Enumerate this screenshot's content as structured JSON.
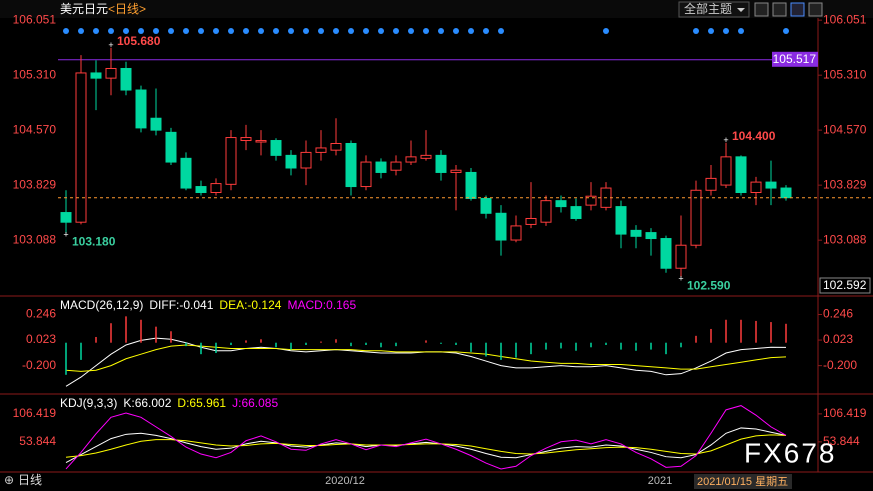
{
  "header": {
    "title": "美元日元",
    "period": "<日线>",
    "theme_button": "全部主题"
  },
  "chart_data": [
    {
      "type": "candlestick",
      "up_color": "#ff3c3c",
      "down_color": "#00d8a0",
      "open": [
        103.46,
        103.33,
        105.34,
        105.27,
        105.4,
        105.11,
        104.73,
        104.54,
        104.19,
        103.81,
        103.73,
        103.84,
        104.43,
        104.41,
        104.43,
        104.23,
        104.06,
        104.27,
        104.3,
        104.39,
        103.81,
        104.14,
        104.03,
        104.14,
        104.19,
        104.23,
        104.0,
        104.0,
        103.65,
        103.45,
        103.09,
        103.3,
        103.33,
        103.62,
        103.54,
        103.56,
        103.53,
        103.54,
        103.22,
        103.19,
        103.11,
        102.71,
        103.02,
        103.76,
        103.83,
        104.21,
        103.73,
        103.87,
        103.79
      ],
      "high": [
        103.76,
        105.58,
        105.51,
        105.68,
        105.49,
        105.17,
        105.13,
        104.6,
        104.27,
        103.89,
        103.92,
        104.57,
        104.64,
        104.57,
        104.46,
        104.3,
        104.43,
        104.57,
        104.73,
        104.43,
        104.23,
        104.19,
        104.23,
        104.43,
        104.57,
        104.3,
        104.1,
        104.06,
        103.69,
        103.56,
        103.42,
        103.87,
        103.69,
        103.69,
        103.65,
        103.87,
        103.87,
        103.62,
        103.29,
        103.25,
        103.15,
        103.42,
        103.89,
        104.1,
        104.4,
        104.23,
        103.94,
        104.16,
        103.83
      ],
      "low": [
        103.18,
        103.3,
        104.84,
        105.04,
        105.04,
        104.54,
        104.5,
        104.1,
        103.76,
        103.69,
        103.69,
        103.76,
        104.3,
        104.23,
        104.16,
        103.96,
        103.83,
        104.16,
        104.23,
        103.69,
        103.76,
        103.92,
        103.96,
        104.1,
        104.16,
        103.89,
        103.49,
        103.62,
        103.38,
        102.88,
        103.06,
        103.25,
        103.28,
        103.46,
        103.35,
        103.49,
        103.49,
        102.98,
        102.98,
        102.88,
        102.65,
        102.59,
        102.98,
        103.69,
        103.79,
        103.69,
        103.56,
        103.56,
        103.62
      ],
      "close": [
        103.33,
        105.34,
        105.27,
        105.4,
        105.11,
        104.6,
        104.57,
        104.14,
        103.79,
        103.73,
        103.85,
        104.47,
        104.47,
        104.43,
        104.23,
        104.06,
        104.27,
        104.33,
        104.39,
        103.81,
        104.14,
        104.0,
        104.14,
        104.21,
        104.23,
        104.0,
        104.03,
        103.65,
        103.45,
        103.09,
        103.28,
        103.38,
        103.62,
        103.54,
        103.38,
        103.68,
        103.79,
        103.17,
        103.14,
        103.11,
        102.71,
        103.02,
        103.76,
        103.92,
        104.21,
        103.73,
        103.87,
        103.79,
        103.66
      ],
      "ylim": [
        102.592,
        106.08
      ],
      "yticks": [
        103.088,
        103.829,
        {
          "value": 104.57,
          "label": "104.570"
        },
        {
          "value": 105.31,
          "label": "105.310"
        },
        106.051
      ],
      "annotations": [
        {
          "value": 105.68,
          "label": "105.680"
        },
        {
          "value": 103.18,
          "label": "103.180"
        },
        {
          "value": 104.4,
          "label": "104.400"
        },
        {
          "value": 102.59,
          "label": "102.590"
        }
      ],
      "reference_line": {
        "value": 105.517,
        "label": "105.517",
        "color": "#8a2be2"
      }
    },
    {
      "type": "macd",
      "title": "MACD(26,12,9)",
      "ylim": [
        -0.43,
        0.39
      ],
      "yticks": [
        0.246,
        0.023,
        {
          "value": -0.2,
          "label": "-0.200"
        }
      ],
      "series": [
        {
          "name": "DIFF:-0.041",
          "color": "#ffffff",
          "values": [
            -0.38,
            -0.3,
            -0.2,
            -0.1,
            -0.02,
            0.02,
            0.04,
            0.03,
            0.0,
            -0.04,
            -0.07,
            -0.07,
            -0.05,
            -0.04,
            -0.05,
            -0.07,
            -0.08,
            -0.07,
            -0.06,
            -0.07,
            -0.08,
            -0.09,
            -0.09,
            -0.09,
            -0.08,
            -0.08,
            -0.09,
            -0.12,
            -0.16,
            -0.2,
            -0.22,
            -0.22,
            -0.21,
            -0.2,
            -0.21,
            -0.21,
            -0.2,
            -0.22,
            -0.24,
            -0.25,
            -0.28,
            -0.27,
            -0.22,
            -0.16,
            -0.09,
            -0.06,
            -0.05,
            -0.04,
            -0.041
          ]
        },
        {
          "name": "DEA:-0.124",
          "color": "#ffff00",
          "values": [
            -0.24,
            -0.25,
            -0.24,
            -0.2,
            -0.14,
            -0.1,
            -0.06,
            -0.03,
            -0.02,
            -0.03,
            -0.04,
            -0.05,
            -0.05,
            -0.05,
            -0.05,
            -0.06,
            -0.06,
            -0.06,
            -0.06,
            -0.06,
            -0.07,
            -0.07,
            -0.08,
            -0.08,
            -0.08,
            -0.08,
            -0.08,
            -0.09,
            -0.1,
            -0.12,
            -0.14,
            -0.16,
            -0.17,
            -0.18,
            -0.18,
            -0.19,
            -0.19,
            -0.19,
            -0.2,
            -0.21,
            -0.22,
            -0.23,
            -0.23,
            -0.21,
            -0.19,
            -0.17,
            -0.15,
            -0.13,
            -0.124
          ]
        },
        {
          "name": "MACD:0.165",
          "color": "#ff00ff",
          "style": "bar",
          "up_color": "#ff3c3c",
          "down_color": "#00d8a0",
          "values": [
            -0.28,
            -0.15,
            0.05,
            0.17,
            0.23,
            0.2,
            0.14,
            0.1,
            -0.03,
            -0.1,
            -0.09,
            -0.02,
            0.02,
            0.03,
            -0.04,
            -0.06,
            -0.02,
            0.01,
            0.03,
            -0.03,
            -0.02,
            -0.04,
            -0.03,
            0.0,
            0.02,
            -0.01,
            -0.02,
            -0.08,
            -0.12,
            -0.15,
            -0.13,
            -0.1,
            -0.06,
            -0.05,
            -0.07,
            -0.04,
            -0.02,
            -0.06,
            -0.07,
            -0.06,
            -0.1,
            -0.04,
            0.06,
            0.12,
            0.2,
            0.2,
            0.19,
            0.18,
            0.165
          ]
        }
      ]
    },
    {
      "type": "line",
      "title": "KDJ(9,3,3)",
      "ylim": [
        1,
        140
      ],
      "yticks": [
        106.419,
        53.844
      ],
      "categories": [
        null,
        null,
        null,
        null,
        null,
        null,
        null,
        null,
        null,
        null,
        null,
        null,
        null,
        null,
        null,
        null,
        null,
        null,
        null,
        "2020/12",
        null,
        null,
        null,
        null,
        null,
        null,
        null,
        null,
        null,
        null,
        null,
        null,
        null,
        null,
        null,
        null,
        null,
        null,
        null,
        null,
        "2021",
        null,
        null,
        null,
        null,
        null,
        null,
        null,
        null
      ],
      "series": [
        {
          "name": "K:66.002",
          "color": "#ffffff",
          "values": [
            15,
            30,
            45,
            60,
            68,
            70,
            66,
            60,
            52,
            45,
            40,
            42,
            50,
            55,
            52,
            46,
            44,
            48,
            52,
            50,
            45,
            48,
            47,
            50,
            53,
            50,
            46,
            40,
            32,
            25,
            24,
            30,
            36,
            42,
            45,
            44,
            48,
            46,
            40,
            34,
            26,
            24,
            30,
            48,
            70,
            80,
            78,
            72,
            66.002
          ]
        },
        {
          "name": "D:65.961",
          "color": "#ffff00",
          "values": [
            25,
            28,
            33,
            40,
            48,
            55,
            58,
            58,
            56,
            52,
            48,
            46,
            47,
            50,
            51,
            49,
            47,
            47,
            49,
            50,
            48,
            48,
            48,
            49,
            50,
            50,
            49,
            46,
            41,
            36,
            32,
            31,
            33,
            36,
            39,
            41,
            43,
            44,
            43,
            40,
            36,
            32,
            31,
            37,
            48,
            59,
            65,
            67,
            65.961
          ]
        },
        {
          "name": "J:66.085",
          "color": "#ff00ff",
          "values": [
            3,
            34,
            69,
            100,
            108,
            100,
            82,
            64,
            44,
            31,
            24,
            34,
            56,
            65,
            54,
            40,
            38,
            50,
            58,
            50,
            39,
            48,
            45,
            52,
            59,
            50,
            40,
            28,
            14,
            3,
            8,
            28,
            42,
            54,
            57,
            50,
            58,
            50,
            34,
            22,
            6,
            8,
            28,
            70,
            114,
            122,
            104,
            82,
            66.085
          ]
        }
      ]
    }
  ],
  "footer": {
    "tab": "日线",
    "cursor_date": "2021/01/15 星期五"
  },
  "watermark": "FX678"
}
